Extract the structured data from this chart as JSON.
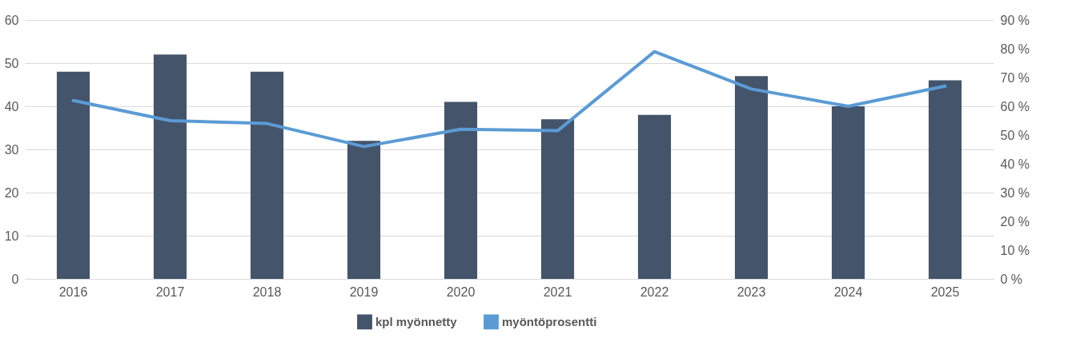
{
  "chart_data": {
    "type": "bar",
    "categories": [
      "2016",
      "2017",
      "2018",
      "2019",
      "2020",
      "2021",
      "2022",
      "2023",
      "2024",
      "2025"
    ],
    "series": [
      {
        "name": "kpl myönnetty",
        "color": "#44546a",
        "values": [
          48,
          52,
          48,
          32,
          41,
          37,
          38,
          47,
          40,
          46
        ]
      },
      {
        "name": "myöntöprosentti",
        "type": "line",
        "axis": "y2",
        "color": "#5b9bd5",
        "values": [
          62,
          55,
          54,
          46,
          52,
          51.5,
          79,
          66,
          60,
          67
        ]
      }
    ],
    "ylim": [
      0,
      60
    ],
    "yticks": [
      0,
      10,
      20,
      30,
      40,
      50,
      60
    ],
    "y2lim": [
      0,
      90
    ],
    "y2ticks": [
      {
        "value": 0,
        "label": "0 %"
      },
      {
        "value": 10,
        "label": "10 %"
      },
      {
        "value": 20,
        "label": "20 %"
      },
      {
        "value": 30,
        "label": "30 %"
      },
      {
        "value": 40,
        "label": "40 %"
      },
      {
        "value": 50,
        "label": "50 %"
      },
      {
        "value": 60,
        "label": "60 %"
      },
      {
        "value": 70,
        "label": "70 %"
      },
      {
        "value": 80,
        "label": "80 %"
      },
      {
        "value": 90,
        "label": "90 %"
      }
    ],
    "grid": "y",
    "legend": "bottom"
  }
}
